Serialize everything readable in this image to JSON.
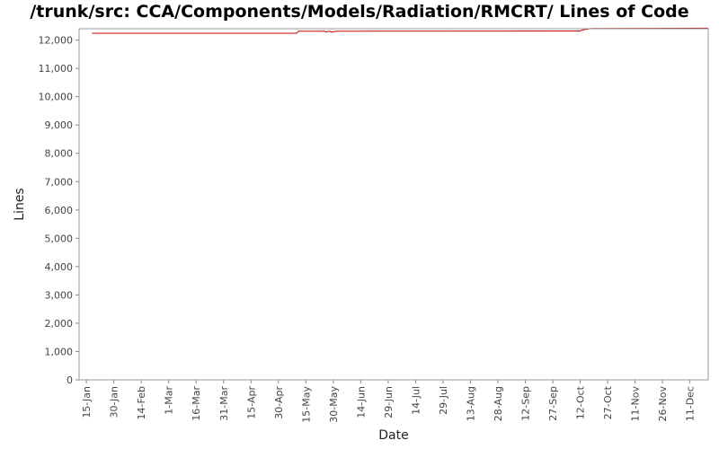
{
  "chart_data": {
    "type": "line",
    "title": "/trunk/src: CCA/Components/Models/Radiation/RMCRT/ Lines of Code",
    "xlabel": "Date",
    "ylabel": "Lines",
    "ylim": [
      0,
      12400
    ],
    "yticks": [
      0,
      1000,
      2000,
      3000,
      4000,
      5000,
      6000,
      7000,
      8000,
      9000,
      10000,
      11000,
      12000
    ],
    "ytick_labels": [
      "0",
      "1,000",
      "2,000",
      "3,000",
      "4,000",
      "5,000",
      "6,000",
      "7,000",
      "8,000",
      "9,000",
      "10,000",
      "11,000",
      "12,000"
    ],
    "xlim": [
      "01-11",
      "12-21"
    ],
    "xticks": [
      "01-15",
      "01-30",
      "02-14",
      "03-01",
      "03-16",
      "03-31",
      "04-15",
      "04-30",
      "05-15",
      "05-30",
      "06-14",
      "06-29",
      "07-14",
      "07-29",
      "08-13",
      "08-28",
      "09-12",
      "09-27",
      "10-12",
      "10-27",
      "11-11",
      "11-26",
      "12-11"
    ],
    "xtick_labels": [
      "15-Jan",
      "30-Jan",
      "14-Feb",
      "1-Mar",
      "16-Mar",
      "31-Mar",
      "15-Apr",
      "30-Apr",
      "15-May",
      "30-May",
      "14-Jun",
      "29-Jun",
      "14-Jul",
      "29-Jul",
      "13-Aug",
      "28-Aug",
      "12-Sep",
      "27-Sep",
      "12-Oct",
      "27-Oct",
      "11-Nov",
      "26-Nov",
      "11-Dec"
    ],
    "grid": false,
    "series": [
      {
        "color": "#cc0000",
        "x": [
          "01-18",
          "05-10",
          "05-11",
          "05-14",
          "05-25",
          "05-26",
          "05-28",
          "05-29",
          "06-01",
          "10-12",
          "10-13",
          "10-15",
          "10-16",
          "10-17",
          "10-18",
          "12-21"
        ],
        "y": [
          12240,
          12240,
          12310,
          12310,
          12310,
          12290,
          12310,
          12280,
          12310,
          12320,
          12350,
          12380,
          12380,
          12400,
          12410,
          12420
        ]
      }
    ]
  },
  "colors": {
    "plot_border": "#999999",
    "line": "#cc0000",
    "background": "#ffffff"
  }
}
